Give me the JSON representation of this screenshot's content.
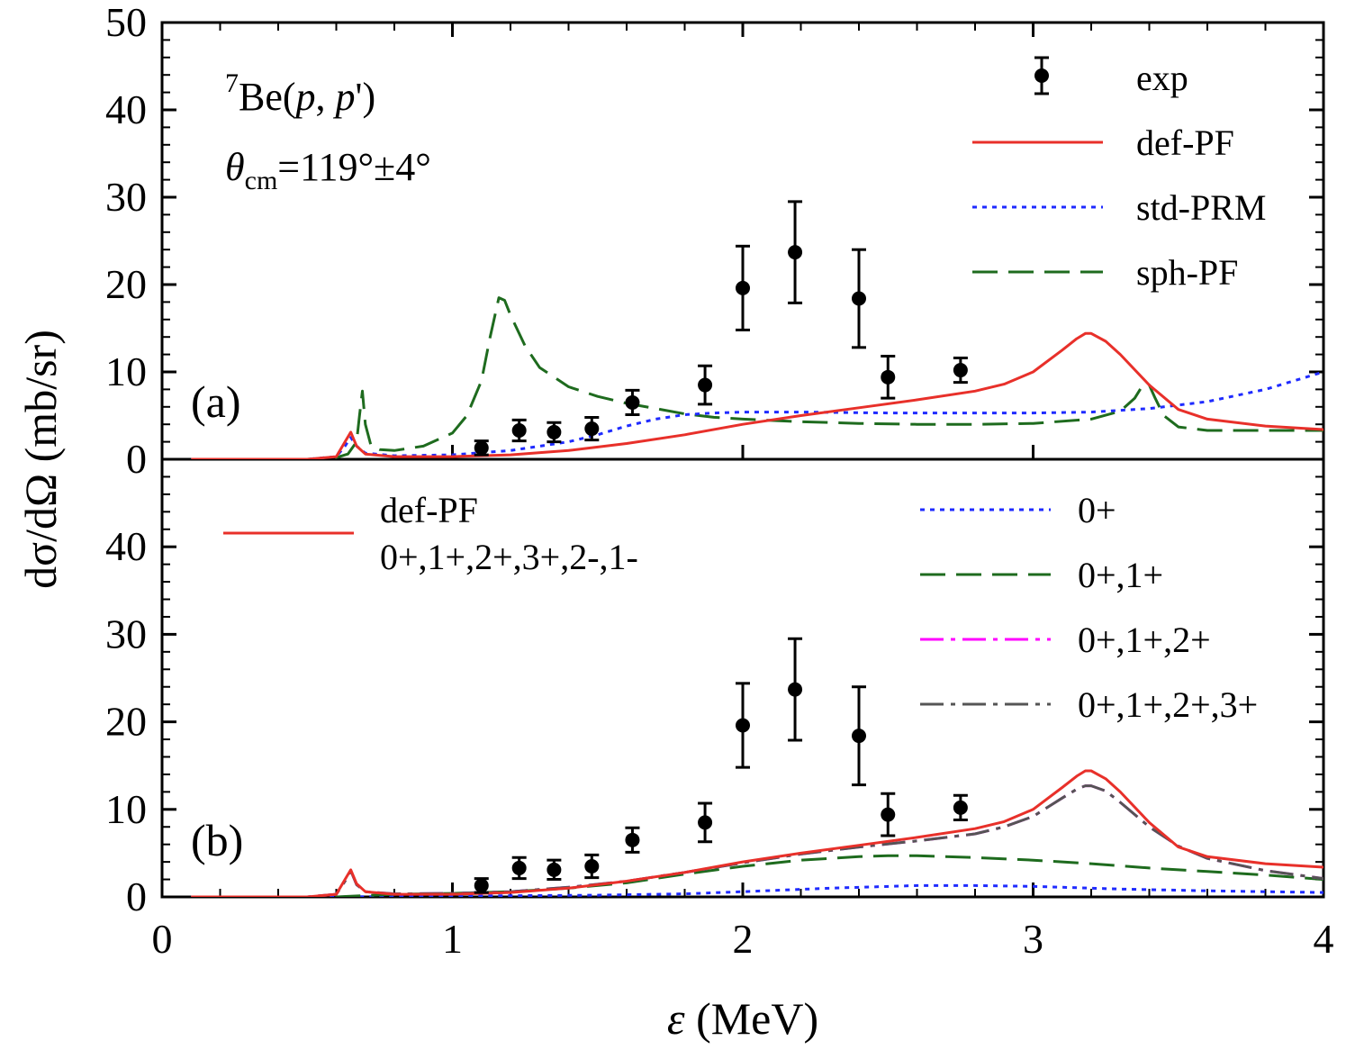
{
  "chart_data": {
    "type": "line",
    "xlabel": "(MeV)",
    "xlabel_symbol": "ε",
    "ylabel": "dσ/dΩ (mb/sr)",
    "xlim": [
      0,
      4
    ],
    "x_ticks": [
      "0",
      "1",
      "2",
      "3",
      "4"
    ],
    "colors": {
      "def": "#e8302a",
      "std": "#1f2bff",
      "sph": "#1e6b1e",
      "zp": "#1f2bff",
      "zp1p": "#1e6b1e",
      "zp1p2p": "#ff00ff",
      "zp1p2p3p": "#555555",
      "exp": "#000000"
    },
    "exp": {
      "x": [
        1.1,
        1.23,
        1.35,
        1.48,
        1.62,
        1.87,
        2.0,
        2.18,
        2.4,
        2.5,
        2.75
      ],
      "y": [
        1.3,
        3.3,
        3.1,
        3.5,
        6.5,
        8.5,
        19.6,
        23.7,
        18.4,
        9.4,
        10.2
      ],
      "err": [
        0.8,
        1.2,
        1.1,
        1.3,
        1.4,
        2.2,
        4.8,
        5.8,
        5.6,
        2.4,
        1.4
      ]
    },
    "panels": [
      {
        "id": "a",
        "label": "(a)",
        "ylim": [
          0,
          50
        ],
        "y_ticks": [
          "0",
          "10",
          "20",
          "30",
          "40",
          "50"
        ],
        "annotation_reaction": {
          "sup": "7",
          "text1": "Be(",
          "p1": "p",
          "text2": ", ",
          "p2": "p",
          "text3": "')"
        },
        "annotation_angle": {
          "theta": "θ",
          "sub": "cm",
          "text": "=119°±4°"
        },
        "legend": [
          {
            "label": "exp",
            "key": "exp",
            "style": "point"
          },
          {
            "label": "def-PF",
            "key": "def",
            "style": "solid"
          },
          {
            "label": "std-PRM",
            "key": "std",
            "style": "dotted"
          },
          {
            "label": "sph-PF",
            "key": "sph",
            "style": "dashed"
          }
        ],
        "series": [
          {
            "name": "sph-PF",
            "key": "sph",
            "style": "dashed",
            "x": [
              0.1,
              0.5,
              0.6,
              0.64,
              0.67,
              0.68,
              0.69,
              0.7,
              0.72,
              0.75,
              0.8,
              0.9,
              1.0,
              1.05,
              1.1,
              1.13,
              1.16,
              1.18,
              1.2,
              1.25,
              1.3,
              1.4,
              1.5,
              1.6,
              1.7,
              1.8,
              1.9,
              2.0,
              2.2,
              2.4,
              2.6,
              2.8,
              3.0,
              3.2,
              3.3,
              3.35,
              3.38,
              3.4,
              3.42,
              3.45,
              3.5,
              3.6,
              3.8,
              4.0
            ],
            "y": [
              0,
              0,
              0.2,
              0.6,
              2,
              5,
              7.8,
              4,
              1.5,
              1.1,
              1,
              1.5,
              3,
              5,
              9,
              14,
              18.5,
              18.2,
              16.5,
              13,
              10.5,
              8.3,
              7.2,
              6.4,
              5.8,
              5.2,
              4.8,
              4.6,
              4.3,
              4.1,
              4.0,
              4.0,
              4.1,
              4.6,
              5.5,
              7,
              8.6,
              8.5,
              7,
              5,
              3.7,
              3.3,
              3.3,
              3.3
            ]
          },
          {
            "name": "std-PRM",
            "key": "std",
            "style": "dotted",
            "x": [
              0.1,
              0.5,
              0.6,
              0.63,
              0.65,
              0.67,
              0.7,
              0.8,
              1.0,
              1.2,
              1.4,
              1.5,
              1.6,
              1.7,
              1.8,
              1.9,
              2.0,
              2.2,
              2.5,
              2.8,
              3.0,
              3.2,
              3.4,
              3.6,
              3.8,
              4.0
            ],
            "y": [
              0,
              0,
              0.3,
              1.5,
              2.5,
              1.5,
              0.7,
              0.4,
              0.5,
              1.0,
              2.0,
              2.8,
              3.8,
              4.6,
              5.1,
              5.3,
              5.4,
              5.4,
              5.3,
              5.3,
              5.3,
              5.4,
              5.8,
              6.6,
              8,
              10
            ]
          },
          {
            "name": "def-PF",
            "key": "def",
            "style": "solid",
            "x": [
              0.1,
              0.5,
              0.6,
              0.63,
              0.65,
              0.67,
              0.7,
              0.8,
              1.0,
              1.2,
              1.4,
              1.6,
              1.8,
              2.0,
              2.2,
              2.4,
              2.6,
              2.8,
              2.9,
              3.0,
              3.1,
              3.15,
              3.18,
              3.2,
              3.25,
              3.3,
              3.4,
              3.5,
              3.6,
              3.8,
              4.0
            ],
            "y": [
              0,
              0,
              0.3,
              2,
              3.1,
              1.5,
              0.6,
              0.3,
              0.3,
              0.5,
              1.0,
              1.8,
              2.8,
              4.0,
              5.0,
              5.9,
              6.8,
              7.8,
              8.6,
              10.0,
              12.5,
              13.8,
              14.4,
              14.4,
              13.5,
              12.0,
              8.5,
              5.7,
              4.6,
              3.8,
              3.4
            ]
          }
        ]
      },
      {
        "id": "b",
        "label": "(b)",
        "ylim": [
          0,
          50
        ],
        "y_ticks": [
          "0",
          "10",
          "20",
          "30",
          "40"
        ],
        "legend_left": {
          "label1": "def-PF",
          "label2": "0+,1+,2+,3+,2-,1-",
          "key": "def",
          "style": "solid"
        },
        "legend": [
          {
            "label": "0+",
            "key": "zp",
            "style": "dotted"
          },
          {
            "label": "0+,1+",
            "key": "zp1p",
            "style": "dashed"
          },
          {
            "label": "0+,1+,2+",
            "key": "zp1p2p",
            "style": "dashdot"
          },
          {
            "label": "0+,1+,2+,3+",
            "key": "zp1p2p3p",
            "style": "dashdot"
          }
        ],
        "series": [
          {
            "name": "0+",
            "key": "zp",
            "style": "dotted",
            "x": [
              0.1,
              0.6,
              0.8,
              1.0,
              1.5,
              1.8,
              2.0,
              2.3,
              2.6,
              2.8,
              3.0,
              3.3,
              3.6,
              3.8,
              4.0
            ],
            "y": [
              0,
              0,
              0.05,
              0.1,
              0.2,
              0.35,
              0.6,
              1.0,
              1.3,
              1.3,
              1.2,
              0.9,
              0.7,
              0.6,
              0.5
            ]
          },
          {
            "name": "0+,1+",
            "key": "zp1p",
            "style": "dashed",
            "x": [
              0.1,
              0.6,
              0.8,
              1.0,
              1.2,
              1.4,
              1.6,
              1.8,
              2.0,
              2.2,
              2.4,
              2.5,
              2.6,
              2.8,
              3.0,
              3.2,
              3.4,
              3.6,
              3.8,
              4.0
            ],
            "y": [
              0,
              0,
              0.3,
              0.4,
              0.6,
              1.0,
              1.6,
              2.6,
              3.5,
              4.2,
              4.6,
              4.7,
              4.7,
              4.5,
              4.2,
              3.8,
              3.3,
              2.9,
              2.5,
              2.0
            ]
          },
          {
            "name": "0+,1+,2+",
            "key": "zp1p2p",
            "style": "dashdot",
            "x": [
              0.1,
              0.5,
              0.6,
              0.63,
              0.65,
              0.67,
              0.7,
              0.8,
              1.0,
              1.2,
              1.4,
              1.6,
              1.8,
              2.0,
              2.2,
              2.4,
              2.6,
              2.8,
              2.9,
              3.0,
              3.1,
              3.15,
              3.18,
              3.2,
              3.25,
              3.3,
              3.4,
              3.5,
              3.6,
              3.8,
              4.0
            ],
            "y": [
              0,
              0,
              0.3,
              1.8,
              3.0,
              1.4,
              0.6,
              0.35,
              0.4,
              0.6,
              1.1,
              1.8,
              2.8,
              3.9,
              4.9,
              5.7,
              6.4,
              7.2,
              8.0,
              9.2,
              11.3,
              12.3,
              12.7,
              12.7,
              12.1,
              10.8,
              8.0,
              5.8,
              4.4,
              3.0,
              2.1
            ]
          },
          {
            "name": "0+,1+,2+,3+",
            "key": "zp1p2p3p",
            "style": "dashdot",
            "x": [
              0.1,
              0.5,
              0.6,
              0.63,
              0.65,
              0.67,
              0.7,
              0.8,
              1.0,
              1.2,
              1.4,
              1.6,
              1.8,
              2.0,
              2.2,
              2.4,
              2.6,
              2.8,
              2.9,
              3.0,
              3.1,
              3.15,
              3.18,
              3.2,
              3.25,
              3.3,
              3.4,
              3.5,
              3.6,
              3.8,
              4.0
            ],
            "y": [
              0,
              0,
              0.3,
              1.8,
              3.0,
              1.4,
              0.6,
              0.35,
              0.4,
              0.6,
              1.1,
              1.8,
              2.8,
              3.9,
              4.9,
              5.7,
              6.4,
              7.2,
              8.0,
              9.2,
              11.3,
              12.3,
              12.7,
              12.7,
              12.1,
              10.8,
              8.0,
              5.8,
              4.4,
              3.0,
              2.1
            ]
          },
          {
            "name": "def-PF",
            "key": "def",
            "style": "solid",
            "x": [
              0.1,
              0.5,
              0.6,
              0.63,
              0.65,
              0.67,
              0.7,
              0.8,
              1.0,
              1.2,
              1.4,
              1.6,
              1.8,
              2.0,
              2.2,
              2.4,
              2.6,
              2.8,
              2.9,
              3.0,
              3.1,
              3.15,
              3.18,
              3.2,
              3.25,
              3.3,
              3.4,
              3.5,
              3.6,
              3.8,
              4.0
            ],
            "y": [
              0,
              0,
              0.3,
              2,
              3.1,
              1.5,
              0.6,
              0.3,
              0.3,
              0.5,
              1.0,
              1.8,
              2.8,
              4.0,
              5.0,
              5.9,
              6.8,
              7.8,
              8.6,
              10.0,
              12.5,
              13.8,
              14.4,
              14.4,
              13.5,
              12.0,
              8.5,
              5.7,
              4.6,
              3.8,
              3.4
            ]
          }
        ]
      }
    ]
  }
}
